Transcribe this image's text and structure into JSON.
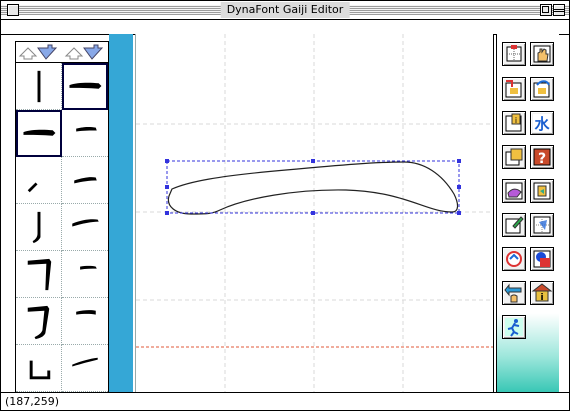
{
  "window": {
    "title": "DynaFont Gaiji Editor"
  },
  "status": {
    "coordinates": "(187,259)"
  },
  "palette": {
    "arrows": [
      "up-down-arrow-icon",
      "up-down-arrow-icon"
    ],
    "strokes": [
      "vertical-stroke-icon",
      "horizontal-stroke-icon",
      "horizontal-stroke-icon",
      "short-horizontal-stroke-icon",
      "rising-stroke-icon",
      "short-horizontal-stroke-icon",
      "hook-stroke-icon",
      "short-rising-stroke-icon",
      "bend-stroke-icon",
      "short-horizontal-stroke-icon",
      "bend-hook-stroke-icon",
      "short-horizontal-stroke-icon",
      "corner-stroke-icon",
      "rising-stroke-icon"
    ],
    "selected": [
      1,
      2
    ]
  },
  "tools": [
    "grid-tool-icon",
    "hand-tool-icon",
    "stroke-move-icon",
    "stroke-rotate-icon",
    "stroke-info-icon",
    "ei-character-icon",
    "copy-icon",
    "help-icon",
    "stroke-edit-icon",
    "stroke-select-icon",
    "draw-icon",
    "grid-edit-icon",
    "rotate-icon",
    "color-icon",
    "undo-hand-icon",
    "info-icon",
    "run-icon"
  ]
}
